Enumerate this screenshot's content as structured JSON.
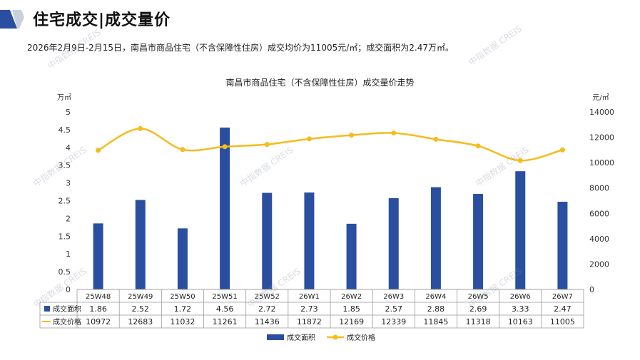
{
  "header": {
    "title": "住宅成交|成交量价",
    "summary": "2026年2月9日-2月15日，南昌市商品住宅（不含保障性住房）成交均价为11005元/㎡；成交面积为2.47万㎡。",
    "accent_color": "#2b4fa0"
  },
  "watermark_text": "中指数据 CREIS",
  "chart_data": {
    "type": "bar+line",
    "title": "南昌市商品住宅（不含保障性住房）成交量价走势",
    "categories": [
      "25W48",
      "25W49",
      "25W50",
      "25W51",
      "25W52",
      "26W1",
      "26W2",
      "26W3",
      "26W4",
      "26W5",
      "26W6",
      "26W7"
    ],
    "series": [
      {
        "name": "成交面积",
        "type": "bar",
        "axis": "left",
        "color": "#2b4fa0",
        "values": [
          1.86,
          2.52,
          1.72,
          4.56,
          2.72,
          2.73,
          1.85,
          2.57,
          2.88,
          2.69,
          3.33,
          2.47
        ],
        "table_labels": [
          "1.86",
          "2.52",
          "1.72",
          "4.56",
          "2.72",
          "2.73",
          "1.85",
          "2.57",
          "2.88",
          "2.69",
          "3.33",
          "2.47"
        ]
      },
      {
        "name": "成交价格",
        "type": "line",
        "axis": "right",
        "color": "#f5bc1c",
        "values": [
          10972,
          12683,
          11032,
          11261,
          11436,
          11872,
          12169,
          12339,
          11845,
          11318,
          10163,
          11005
        ],
        "table_labels": [
          "10972",
          "12683",
          "11032",
          "11261",
          "11436",
          "11872",
          "12169",
          "12339",
          "11845",
          "11318",
          "10163",
          "11005"
        ]
      }
    ],
    "left_axis": {
      "unit": "万㎡",
      "min": 0,
      "max": 5,
      "ticks": [
        "0",
        "0.5",
        "1",
        "1.5",
        "2",
        "2.5",
        "3",
        "3.5",
        "4",
        "4.5",
        "5"
      ]
    },
    "right_axis": {
      "unit": "元/㎡",
      "min": 0,
      "max": 14000,
      "ticks": [
        "0",
        "2000",
        "4000",
        "6000",
        "8000",
        "10000",
        "12000",
        "14000"
      ]
    },
    "legend_position": "bottom",
    "grid": false
  }
}
